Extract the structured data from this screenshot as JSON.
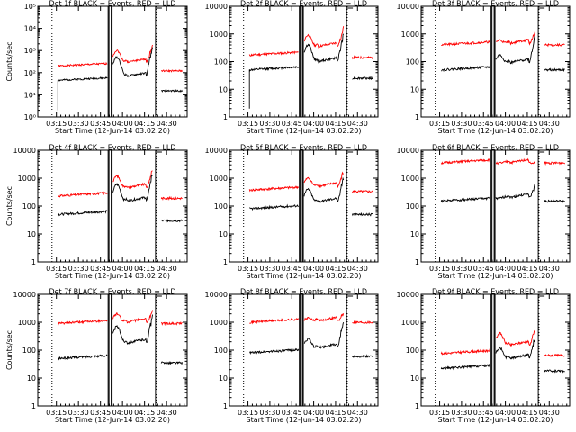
{
  "chart_data": [
    {
      "type": "line",
      "title": "Det 1f BLACK = Events, RED = LLD",
      "xlabel": "Start Time (12-Jun-14 03:02:20)",
      "ylabel": "Counts/sec",
      "yscale": "log",
      "ylim": [
        1,
        100000
      ],
      "y_tick_labels": [
        "10⁰",
        "10¹",
        "10²",
        "10³",
        "10⁴",
        "10⁵"
      ],
      "x_tick_labels": [
        "03:15",
        "03:30",
        "03:45",
        "04:00",
        "04:15",
        "04:30"
      ],
      "series": [
        {
          "color": "#ff0000",
          "level_before": 200,
          "level_after": 120,
          "bump": 1000,
          "pre": 300,
          "peak": 2000
        },
        {
          "color": "#000000",
          "level_before": 45,
          "level_after": 15,
          "bump": 500,
          "pre": 70,
          "peak": 1500,
          "start": 2
        }
      ]
    },
    {
      "type": "line",
      "title": "Det 2f BLACK = Events, RED = LLD",
      "xlabel": "Start Time (12-Jun-14 03:02:20)",
      "ylabel": "",
      "yscale": "log",
      "ylim": [
        1,
        10000
      ],
      "y_tick_labels": [
        "1",
        "10",
        "100",
        "1000",
        "10000"
      ],
      "x_tick_labels": [
        "03:15",
        "03:30",
        "03:45",
        "04:00",
        "04:15",
        "04:30"
      ],
      "series": [
        {
          "color": "#ff0000",
          "level_before": 170,
          "level_after": 140,
          "bump": 900,
          "pre": 350,
          "peak": 2000
        },
        {
          "color": "#000000",
          "level_before": 50,
          "level_after": 25,
          "bump": 400,
          "pre": 100,
          "peak": 1200,
          "start": 2
        }
      ]
    },
    {
      "type": "line",
      "title": "Det 3f BLACK = Events, RED = LLD",
      "xlabel": "Start Time (12-Jun-14 03:02:20)",
      "ylabel": "",
      "yscale": "log",
      "ylim": [
        1,
        10000
      ],
      "y_tick_labels": [
        "1",
        "10",
        "100",
        "1000",
        "10000"
      ],
      "x_tick_labels": [
        "03:15",
        "03:30",
        "03:45",
        "04:00",
        "04:15",
        "04:30"
      ],
      "series": [
        {
          "color": "#ff0000",
          "level_before": 400,
          "level_after": 400,
          "bump": 600,
          "pre": 450,
          "peak": 1500
        },
        {
          "color": "#000000",
          "level_before": 50,
          "level_after": 50,
          "bump": 170,
          "pre": 90,
          "peak": 1000
        }
      ]
    },
    {
      "type": "line",
      "title": "Det 4f BLACK = Events, RED = LLD",
      "xlabel": "Start Time (12-Jun-14 03:02:20)",
      "ylabel": "Counts/sec",
      "yscale": "log",
      "ylim": [
        1,
        10000
      ],
      "y_tick_labels": [
        "1",
        "10",
        "100",
        "1000",
        "10000"
      ],
      "x_tick_labels": [
        "03:15",
        "03:30",
        "03:45",
        "04:00",
        "04:15",
        "04:30"
      ],
      "series": [
        {
          "color": "#ff0000",
          "level_before": 230,
          "level_after": 190,
          "bump": 1200,
          "pre": 450,
          "peak": 2500
        },
        {
          "color": "#000000",
          "level_before": 50,
          "level_after": 30,
          "bump": 600,
          "pre": 150,
          "peak": 1700
        }
      ]
    },
    {
      "type": "line",
      "title": "Det 5f BLACK = Events, RED = LLD",
      "xlabel": "Start Time (12-Jun-14 03:02:20)",
      "ylabel": "",
      "yscale": "log",
      "ylim": [
        1,
        10000
      ],
      "y_tick_labels": [
        "1",
        "10",
        "100",
        "1000",
        "10000"
      ],
      "x_tick_labels": [
        "03:15",
        "03:30",
        "03:45",
        "04:00",
        "04:15",
        "04:30"
      ],
      "series": [
        {
          "color": "#ff0000",
          "level_before": 370,
          "level_after": 330,
          "bump": 1000,
          "pre": 500,
          "peak": 2200
        },
        {
          "color": "#000000",
          "level_before": 80,
          "level_after": 50,
          "bump": 400,
          "pre": 140,
          "peak": 1300
        }
      ]
    },
    {
      "type": "line",
      "title": "Det 6f BLACK = Events, RED = LLD",
      "xlabel": "Start Time (12-Jun-14 03:02:20)",
      "ylabel": "",
      "yscale": "log",
      "ylim": [
        1,
        10000
      ],
      "y_tick_labels": [
        "1",
        "10",
        "100",
        "1000",
        "10000"
      ],
      "x_tick_labels": [
        "03:15",
        "03:30",
        "03:45",
        "04:00",
        "04:15",
        "04:30"
      ],
      "series": [
        {
          "color": "#ff0000",
          "level_before": 3500,
          "level_after": 3500,
          "bump": 3500,
          "pre": 3500,
          "peak": 3500
        },
        {
          "color": "#000000",
          "level_before": 150,
          "level_after": 150,
          "bump": 180,
          "pre": 200,
          "peak": 700
        }
      ]
    },
    {
      "type": "line",
      "title": "Det 7f BLACK = Events, RED = LLD",
      "xlabel": "Start Time (12-Jun-14 03:02:20)",
      "ylabel": "Counts/sec",
      "yscale": "log",
      "ylim": [
        1,
        10000
      ],
      "y_tick_labels": [
        "1",
        "10",
        "100",
        "1000",
        "10000"
      ],
      "x_tick_labels": [
        "03:15",
        "03:30",
        "03:45",
        "04:00",
        "04:15",
        "04:30"
      ],
      "series": [
        {
          "color": "#ff0000",
          "level_before": 900,
          "level_after": 900,
          "bump": 2000,
          "pre": 1000,
          "peak": 3000
        },
        {
          "color": "#000000",
          "level_before": 50,
          "level_after": 35,
          "bump": 700,
          "pre": 180,
          "peak": 2000
        }
      ]
    },
    {
      "type": "line",
      "title": "Det 8f BLACK = Events, RED = LLD",
      "xlabel": "Start Time (12-Jun-14 03:02:20)",
      "ylabel": "",
      "yscale": "log",
      "ylim": [
        1,
        10000
      ],
      "y_tick_labels": [
        "1",
        "10",
        "100",
        "1000",
        "10000"
      ],
      "x_tick_labels": [
        "03:15",
        "03:30",
        "03:45",
        "04:00",
        "04:15",
        "04:30"
      ],
      "series": [
        {
          "color": "#ff0000",
          "level_before": 1000,
          "level_after": 1000,
          "bump": 1400,
          "pre": 1100,
          "peak": 2500
        },
        {
          "color": "#000000",
          "level_before": 80,
          "level_after": 60,
          "bump": 250,
          "pre": 120,
          "peak": 1200
        }
      ]
    },
    {
      "type": "line",
      "title": "Det 9f BLACK = Events, RED = LLD",
      "xlabel": "Start Time (12-Jun-14 03:02:20)",
      "ylabel": "",
      "yscale": "log",
      "ylim": [
        1,
        10000
      ],
      "y_tick_labels": [
        "1",
        "10",
        "100",
        "1000",
        "10000"
      ],
      "x_tick_labels": [
        "03:15",
        "03:30",
        "03:45",
        "04:00",
        "04:15",
        "04:30"
      ],
      "series": [
        {
          "color": "#ff0000",
          "level_before": 75,
          "level_after": 65,
          "bump": 400,
          "pre": 150,
          "peak": 700
        },
        {
          "color": "#000000",
          "level_before": 22,
          "level_after": 18,
          "bump": 120,
          "pre": 50,
          "peak": 350
        }
      ]
    }
  ]
}
